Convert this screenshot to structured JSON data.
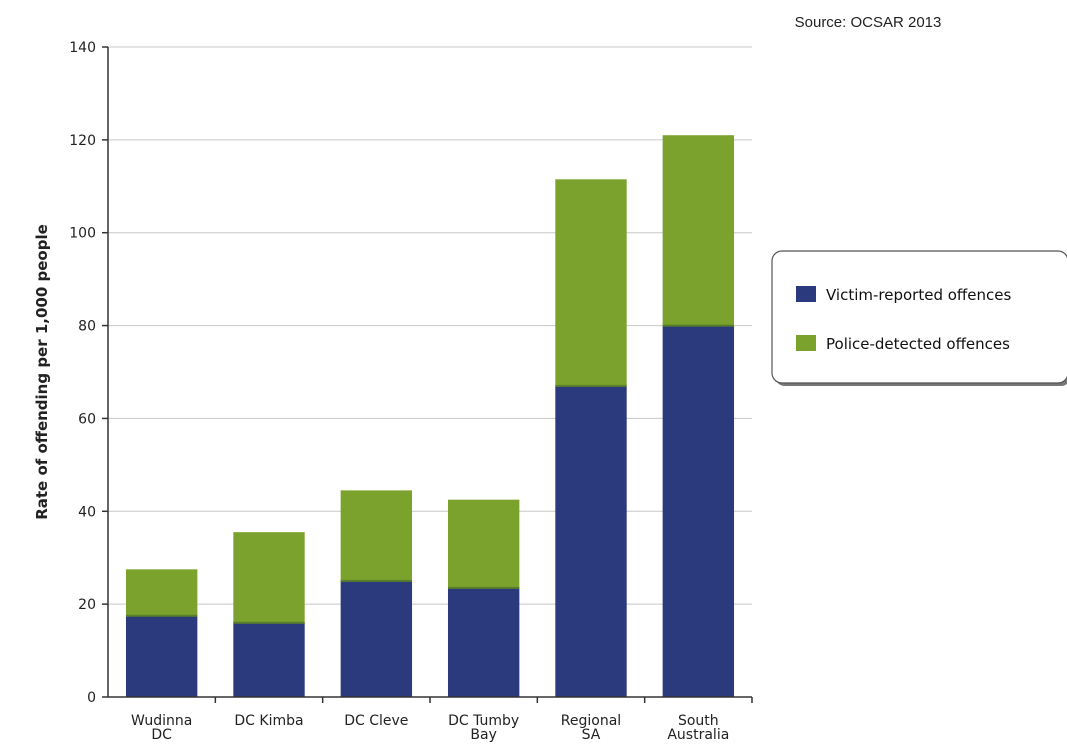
{
  "chart_data": {
    "type": "bar",
    "stacked": true,
    "source": "Source: OCSAR 2013",
    "ylabel": "Rate of offending per 1,000 people",
    "ylim": [
      0,
      140
    ],
    "yticks": [
      0,
      20,
      40,
      60,
      80,
      100,
      120,
      140
    ],
    "grid": true,
    "legend_position": "right",
    "categories": [
      [
        "Wudinna",
        "DC"
      ],
      [
        "DC Kimba"
      ],
      [
        "DC Cleve"
      ],
      [
        "DC Tumby",
        "Bay"
      ],
      [
        "Regional",
        "SA"
      ],
      [
        "South",
        "Australia"
      ]
    ],
    "series": [
      {
        "name": "Victim-reported offences",
        "color": "#2b3a7c",
        "values": [
          17.5,
          16,
          25,
          23.5,
          67,
          80
        ]
      },
      {
        "name": "Police-detected offences",
        "color": "#7aa22c",
        "values": [
          10,
          19.5,
          19.5,
          19,
          44.5,
          41
        ]
      }
    ]
  }
}
